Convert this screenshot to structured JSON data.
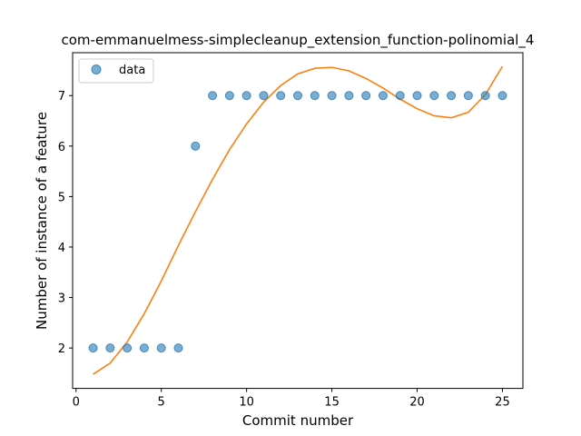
{
  "chart_data": {
    "type": "scatter",
    "title": "com-emmanuelmess-simplecleanup_extension_function-polinomial_4",
    "xlabel": "Commit number",
    "ylabel": "Number of instance of a feature",
    "xlim": [
      -0.2,
      26.2
    ],
    "ylim": [
      1.2,
      7.85
    ],
    "xticks": [
      0,
      5,
      10,
      15,
      20,
      25
    ],
    "yticks": [
      2,
      3,
      4,
      5,
      6,
      7
    ],
    "grid": false,
    "legend": {
      "position": "top-left",
      "entries": [
        "data"
      ]
    },
    "series": [
      {
        "name": "data",
        "kind": "scatter",
        "color": "#1f77b4",
        "x": [
          1,
          2,
          3,
          4,
          5,
          6,
          7,
          8,
          9,
          10,
          11,
          12,
          13,
          14,
          15,
          16,
          17,
          18,
          19,
          20,
          21,
          22,
          23,
          24,
          25
        ],
        "y": [
          2,
          2,
          2,
          2,
          2,
          2,
          6,
          7,
          7,
          7,
          7,
          7,
          7,
          7,
          7,
          7,
          7,
          7,
          7,
          7,
          7,
          7,
          7,
          7,
          7
        ]
      },
      {
        "kind": "line",
        "color": "#ff7f0e",
        "x": [
          1,
          2,
          3,
          4,
          5,
          6,
          7,
          8,
          9,
          10,
          11,
          12,
          13,
          14,
          15,
          16,
          17,
          18,
          19,
          20,
          21,
          22,
          23,
          24,
          25
        ],
        "y": [
          1.48,
          1.7,
          2.12,
          2.68,
          3.33,
          4.03,
          4.7,
          5.34,
          5.93,
          6.44,
          6.87,
          7.2,
          7.43,
          7.54,
          7.56,
          7.49,
          7.34,
          7.15,
          6.93,
          6.74,
          6.6,
          6.56,
          6.67,
          7.02,
          7.58
        ]
      }
    ]
  }
}
